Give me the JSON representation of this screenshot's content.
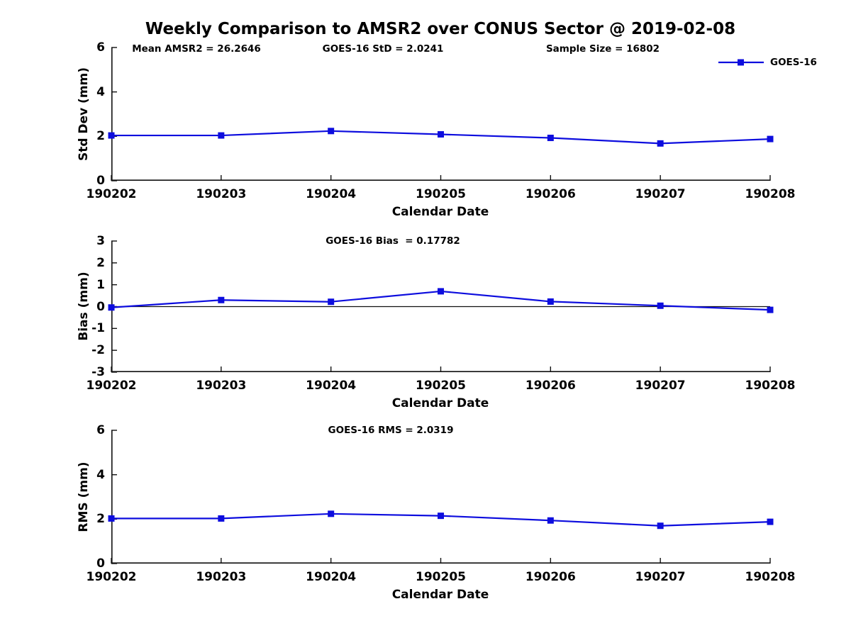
{
  "figure": {
    "background": "#ffffff"
  },
  "colors": {
    "series": "#0d0dde",
    "axis": "#111111",
    "text": "#000000",
    "zero_line": "#111111"
  },
  "legend": {
    "label": "GOES-16",
    "position": "upper right"
  },
  "chart_data": [
    {
      "type": "line",
      "title": "Weekly Comparison to AMSR2 over CONUS Sector @ 2019-02-08",
      "ylabel": "Std Dev (mm)",
      "xlabel": "Calendar Date",
      "categories": [
        "190202",
        "190203",
        "190204",
        "190205",
        "190206",
        "190207",
        "190208"
      ],
      "series": [
        {
          "name": "GOES-16",
          "values": [
            2.04,
            2.04,
            2.24,
            2.09,
            1.93,
            1.68,
            1.88
          ]
        }
      ],
      "ylim": [
        0,
        6
      ],
      "yticks": [
        0,
        2,
        4,
        6
      ],
      "annotations": [
        "Mean AMSR2 = 26.2646",
        "GOES-16 StD = 2.0241",
        "Sample Size = 16802"
      ],
      "grid": false,
      "legend_shown": true,
      "marker": "square"
    },
    {
      "type": "line",
      "title": "GOES-16 Bias  = 0.17782",
      "ylabel": "Bias (mm)",
      "xlabel": "Calendar Date",
      "categories": [
        "190202",
        "190203",
        "190204",
        "190205",
        "190206",
        "190207",
        "190208"
      ],
      "series": [
        {
          "name": "GOES-16",
          "values": [
            -0.04,
            0.3,
            0.22,
            0.7,
            0.23,
            0.04,
            -0.15
          ]
        }
      ],
      "ylim": [
        -3,
        3
      ],
      "yticks": [
        3,
        2,
        1,
        0,
        -1,
        -2,
        -3
      ],
      "zero_line": true,
      "grid": false,
      "legend_shown": false,
      "marker": "square"
    },
    {
      "type": "line",
      "title": "GOES-16 RMS = 2.0319",
      "ylabel": "RMS (mm)",
      "xlabel": "Calendar Date",
      "categories": [
        "190202",
        "190203",
        "190204",
        "190205",
        "190206",
        "190207",
        "190208"
      ],
      "series": [
        {
          "name": "GOES-16",
          "values": [
            2.03,
            2.03,
            2.24,
            2.15,
            1.94,
            1.7,
            1.88
          ]
        }
      ],
      "ylim": [
        0,
        6
      ],
      "yticks": [
        0,
        2,
        4,
        6
      ],
      "grid": false,
      "legend_shown": false,
      "marker": "square"
    }
  ]
}
